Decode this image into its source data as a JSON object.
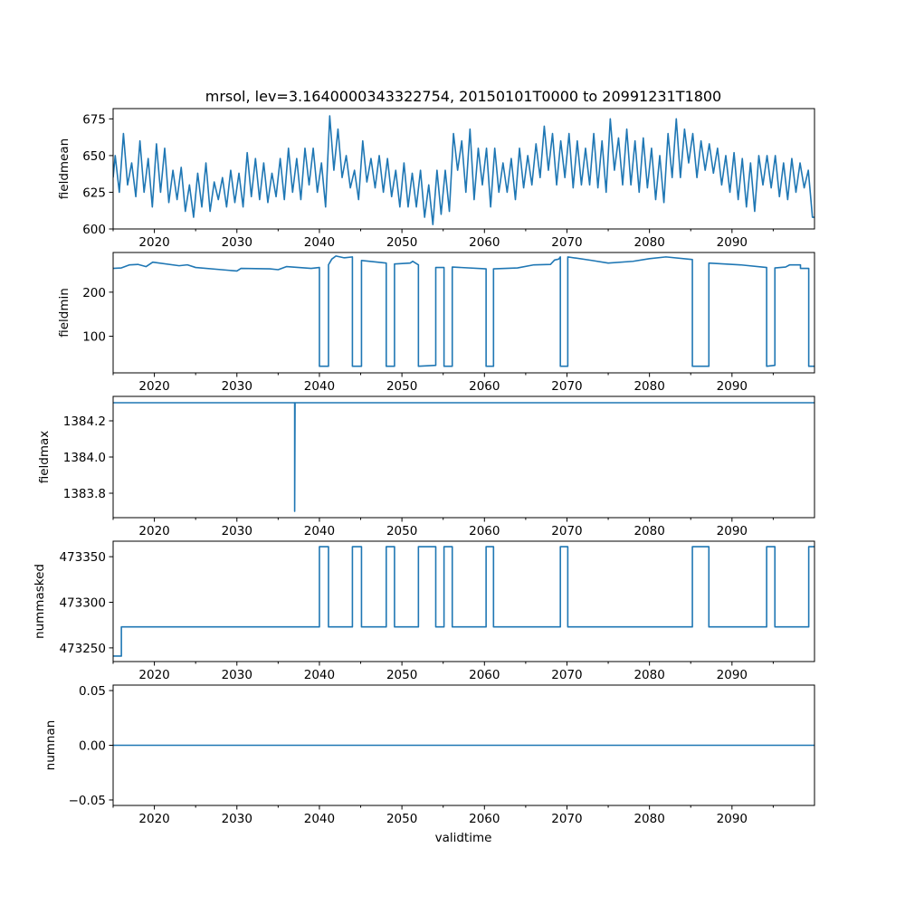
{
  "chart_data": {
    "type": "line",
    "title": "mrsol, lev=3.1640000343322754, 20150101T0000 to 20991231T1800",
    "xlabel": "validtime",
    "xlim": [
      2015,
      2100
    ],
    "xticks": [
      2020,
      2030,
      2040,
      2050,
      2060,
      2070,
      2080,
      2090
    ],
    "xtick_labels": [
      "2020",
      "2030",
      "2040",
      "2050",
      "2060",
      "2070",
      "2080",
      "2090"
    ],
    "line_color": "#1f77b4",
    "grid": false,
    "panels": [
      {
        "ylabel": "fieldmean",
        "ylim": [
          600,
          682
        ],
        "yticks": [
          600,
          625,
          650,
          675
        ],
        "ytick_labels": [
          "600",
          "625",
          "650",
          "675"
        ],
        "series_yearly_peak_trough": [
          [
            650,
            625
          ],
          [
            665,
            630
          ],
          [
            645,
            622
          ],
          [
            660,
            625
          ],
          [
            648,
            615
          ],
          [
            658,
            625
          ],
          [
            655,
            618
          ],
          [
            640,
            620
          ],
          [
            642,
            612
          ],
          [
            630,
            608
          ],
          [
            638,
            615
          ],
          [
            645,
            612
          ],
          [
            632,
            620
          ],
          [
            635,
            615
          ],
          [
            640,
            618
          ],
          [
            638,
            615
          ],
          [
            652,
            622
          ],
          [
            648,
            620
          ],
          [
            645,
            618
          ],
          [
            638,
            622
          ],
          [
            648,
            620
          ],
          [
            655,
            625
          ],
          [
            648,
            620
          ],
          [
            655,
            630
          ],
          [
            655,
            625
          ],
          [
            645,
            615
          ],
          [
            677,
            640
          ],
          [
            668,
            635
          ],
          [
            650,
            628
          ],
          [
            640,
            620
          ],
          [
            660,
            632
          ],
          [
            648,
            628
          ],
          [
            650,
            625
          ],
          [
            648,
            622
          ],
          [
            640,
            615
          ],
          [
            645,
            615
          ],
          [
            638,
            615
          ],
          [
            640,
            608
          ],
          [
            630,
            603
          ],
          [
            640,
            610
          ],
          [
            640,
            612
          ],
          [
            665,
            640
          ],
          [
            660,
            625
          ],
          [
            668,
            620
          ],
          [
            655,
            630
          ],
          [
            655,
            615
          ],
          [
            655,
            625
          ],
          [
            645,
            625
          ],
          [
            648,
            620
          ],
          [
            655,
            628
          ],
          [
            650,
            630
          ],
          [
            658,
            635
          ],
          [
            670,
            640
          ],
          [
            665,
            630
          ],
          [
            660,
            635
          ],
          [
            665,
            628
          ],
          [
            660,
            630
          ],
          [
            655,
            630
          ],
          [
            665,
            628
          ],
          [
            660,
            625
          ],
          [
            675,
            640
          ],
          [
            662,
            630
          ],
          [
            668,
            630
          ],
          [
            660,
            625
          ],
          [
            662,
            628
          ],
          [
            655,
            620
          ],
          [
            650,
            618
          ],
          [
            665,
            635
          ],
          [
            675,
            635
          ],
          [
            668,
            645
          ],
          [
            665,
            635
          ],
          [
            660,
            640
          ],
          [
            658,
            638
          ],
          [
            655,
            630
          ],
          [
            650,
            625
          ],
          [
            652,
            620
          ],
          [
            648,
            615
          ],
          [
            645,
            612
          ],
          [
            650,
            630
          ],
          [
            650,
            628
          ],
          [
            650,
            622
          ],
          [
            645,
            620
          ],
          [
            648,
            625
          ],
          [
            645,
            628
          ],
          [
            640,
            608
          ]
        ],
        "series_start_year": 2015,
        "end_value": 608
      },
      {
        "ylabel": "fieldmin",
        "ylim": [
          17,
          290
        ],
        "yticks": [
          100,
          200
        ],
        "ytick_labels": [
          "100",
          "200"
        ],
        "points": [
          [
            2015,
            254
          ],
          [
            2016,
            255
          ],
          [
            2017,
            262
          ],
          [
            2018,
            263
          ],
          [
            2019,
            258
          ],
          [
            2019.8,
            268
          ],
          [
            2023,
            260
          ],
          [
            2024,
            262
          ],
          [
            2025,
            256
          ],
          [
            2030,
            248
          ],
          [
            2030.5,
            254
          ],
          [
            2034,
            253
          ],
          [
            2035,
            251
          ],
          [
            2036,
            258
          ],
          [
            2039,
            254
          ],
          [
            2040,
            256
          ],
          [
            2040,
            32
          ],
          [
            2041.1,
            32
          ],
          [
            2041.1,
            262
          ],
          [
            2041.5,
            275
          ],
          [
            2042,
            282
          ],
          [
            2043,
            278
          ],
          [
            2044,
            280
          ],
          [
            2044,
            32
          ],
          [
            2045.1,
            32
          ],
          [
            2045.1,
            272
          ],
          [
            2048.1,
            266
          ],
          [
            2048.1,
            32
          ],
          [
            2049.1,
            32
          ],
          [
            2049.1,
            264
          ],
          [
            2051,
            266
          ],
          [
            2051.3,
            270
          ],
          [
            2052,
            262
          ],
          [
            2052,
            32
          ],
          [
            2054.1,
            34
          ],
          [
            2054.1,
            256
          ],
          [
            2055.1,
            256
          ],
          [
            2055.1,
            32
          ],
          [
            2056.1,
            32
          ],
          [
            2056.1,
            257
          ],
          [
            2060.2,
            253
          ],
          [
            2060.2,
            32
          ],
          [
            2061.1,
            32
          ],
          [
            2061.1,
            253
          ],
          [
            2064,
            255
          ],
          [
            2066,
            262
          ],
          [
            2068,
            263
          ],
          [
            2068.5,
            273
          ],
          [
            2069,
            275
          ],
          [
            2069.2,
            280
          ],
          [
            2069.2,
            32
          ],
          [
            2070.1,
            32
          ],
          [
            2070.1,
            280
          ],
          [
            2073,
            272
          ],
          [
            2075,
            266
          ],
          [
            2078,
            270
          ],
          [
            2080,
            276
          ],
          [
            2082,
            280
          ],
          [
            2085.2,
            274
          ],
          [
            2085.2,
            32
          ],
          [
            2087.2,
            32
          ],
          [
            2087.2,
            266
          ],
          [
            2091,
            262
          ],
          [
            2094.2,
            256
          ],
          [
            2094.2,
            32
          ],
          [
            2095.2,
            34
          ],
          [
            2095.2,
            255
          ],
          [
            2096.5,
            257
          ],
          [
            2097,
            262
          ],
          [
            2098.3,
            262
          ],
          [
            2098.3,
            254
          ],
          [
            2099.3,
            254
          ],
          [
            2099.3,
            32
          ],
          [
            2100,
            32
          ]
        ]
      },
      {
        "ylabel": "fieldmax",
        "ylim": [
          1383.665,
          1384.335
        ],
        "yticks": [
          1383.8,
          1384.0,
          1384.2
        ],
        "ytick_labels": [
          "1383.8",
          "1384.0",
          "1384.2"
        ],
        "points": [
          [
            2015,
            1384.3
          ],
          [
            2037,
            1384.3
          ],
          [
            2037,
            1383.7
          ],
          [
            2037.05,
            1384.3
          ],
          [
            2100,
            1384.3
          ]
        ]
      },
      {
        "ylabel": "nummasked",
        "ylim": [
          473235,
          473367
        ],
        "yticks": [
          473250,
          473300,
          473350
        ],
        "ytick_labels": [
          "473250",
          "473300",
          "473350"
        ],
        "points": [
          [
            2015,
            473241
          ],
          [
            2016,
            473241
          ],
          [
            2016,
            473273
          ],
          [
            2040,
            473273
          ],
          [
            2040,
            473361
          ],
          [
            2041.1,
            473361
          ],
          [
            2041.1,
            473273
          ],
          [
            2044,
            473273
          ],
          [
            2044,
            473361
          ],
          [
            2045.1,
            473361
          ],
          [
            2045.1,
            473273
          ],
          [
            2048.1,
            473273
          ],
          [
            2048.1,
            473361
          ],
          [
            2049.1,
            473361
          ],
          [
            2049.1,
            473273
          ],
          [
            2052,
            473273
          ],
          [
            2052,
            473361
          ],
          [
            2054.1,
            473361
          ],
          [
            2054.1,
            473273
          ],
          [
            2055.1,
            473273
          ],
          [
            2055.1,
            473361
          ],
          [
            2056.1,
            473361
          ],
          [
            2056.1,
            473273
          ],
          [
            2060.2,
            473273
          ],
          [
            2060.2,
            473361
          ],
          [
            2061.1,
            473361
          ],
          [
            2061.1,
            473273
          ],
          [
            2069.2,
            473273
          ],
          [
            2069.2,
            473361
          ],
          [
            2070.1,
            473361
          ],
          [
            2070.1,
            473273
          ],
          [
            2085.2,
            473273
          ],
          [
            2085.2,
            473361
          ],
          [
            2087.2,
            473361
          ],
          [
            2087.2,
            473273
          ],
          [
            2094.2,
            473273
          ],
          [
            2094.2,
            473361
          ],
          [
            2095.2,
            473361
          ],
          [
            2095.2,
            473273
          ],
          [
            2099.3,
            473273
          ],
          [
            2099.3,
            473361
          ],
          [
            2100,
            473361
          ]
        ]
      },
      {
        "ylabel": "numnan",
        "ylim": [
          -0.055,
          0.055
        ],
        "yticks": [
          -0.05,
          0.0,
          0.05
        ],
        "ytick_labels": [
          "−0.05",
          "0.00",
          "0.05"
        ],
        "points": [
          [
            2015,
            0
          ],
          [
            2100,
            0
          ]
        ]
      }
    ]
  }
}
